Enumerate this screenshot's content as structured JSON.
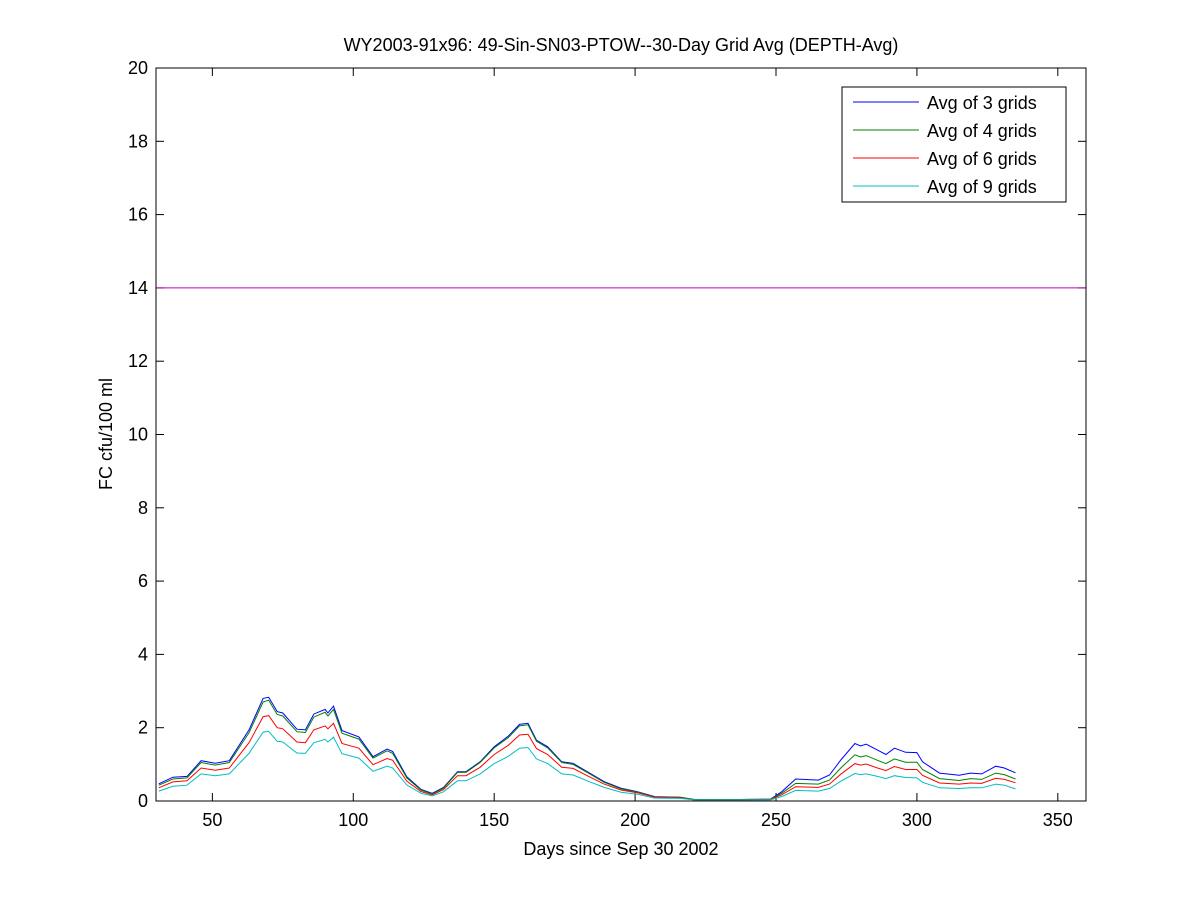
{
  "chart_data": {
    "type": "line",
    "title": "WY2003-91x96: 49-Sin-SN03-PTOW--30-Day Grid Avg (DEPTH-Avg)",
    "xlabel": "Days since Sep 30 2002",
    "ylabel": "FC cfu/100 ml",
    "xlim": [
      30,
      360
    ],
    "ylim": [
      0,
      20
    ],
    "xticks": [
      50,
      100,
      150,
      200,
      250,
      300,
      350
    ],
    "yticks": [
      0,
      2,
      4,
      6,
      8,
      10,
      12,
      14,
      16,
      18,
      20
    ],
    "grid": false,
    "legend_position": "top-right",
    "x": [
      31,
      36,
      41,
      46,
      51,
      56,
      63,
      68,
      70,
      73,
      75,
      80,
      83,
      86,
      90,
      91,
      93,
      96,
      102,
      107,
      112,
      114,
      119,
      124,
      128,
      132,
      137,
      140,
      145,
      150,
      155,
      159,
      162,
      165,
      169,
      174,
      178,
      183,
      189,
      195,
      201,
      207,
      216,
      221,
      230,
      237,
      248,
      252,
      257,
      265,
      269,
      273,
      278,
      280,
      282,
      286,
      289,
      292,
      296,
      300,
      302,
      308,
      315,
      319,
      323,
      328,
      331,
      335
    ],
    "series": [
      {
        "name": "Avg of 3 grids",
        "color": "#0000ff",
        "values": [
          0.47,
          0.65,
          0.67,
          1.1,
          1.03,
          1.1,
          1.94,
          2.8,
          2.83,
          2.44,
          2.4,
          1.96,
          1.94,
          2.37,
          2.5,
          2.4,
          2.59,
          1.92,
          1.75,
          1.21,
          1.42,
          1.35,
          0.66,
          0.32,
          0.21,
          0.37,
          0.8,
          0.8,
          1.07,
          1.48,
          1.77,
          2.09,
          2.12,
          1.66,
          1.48,
          1.07,
          1.03,
          0.8,
          0.53,
          0.35,
          0.25,
          0.12,
          0.1,
          0.04,
          0.04,
          0.04,
          0.05,
          0.25,
          0.6,
          0.57,
          0.71,
          1.12,
          1.57,
          1.5,
          1.55,
          1.39,
          1.27,
          1.44,
          1.33,
          1.32,
          1.07,
          0.76,
          0.7,
          0.76,
          0.74,
          0.95,
          0.9,
          0.77
        ]
      },
      {
        "name": "Avg of 4 grids",
        "color": "#008000",
        "values": [
          0.43,
          0.6,
          0.63,
          1.05,
          0.98,
          1.05,
          1.86,
          2.7,
          2.75,
          2.36,
          2.32,
          1.89,
          1.87,
          2.29,
          2.42,
          2.32,
          2.5,
          1.85,
          1.69,
          1.17,
          1.37,
          1.3,
          0.63,
          0.3,
          0.19,
          0.35,
          0.78,
          0.78,
          1.05,
          1.45,
          1.73,
          2.05,
          2.08,
          1.63,
          1.45,
          1.05,
          1.0,
          0.78,
          0.51,
          0.33,
          0.24,
          0.11,
          0.1,
          0.04,
          0.04,
          0.04,
          0.05,
          0.21,
          0.48,
          0.46,
          0.57,
          0.9,
          1.26,
          1.2,
          1.24,
          1.11,
          1.02,
          1.15,
          1.06,
          1.06,
          0.86,
          0.61,
          0.56,
          0.61,
          0.59,
          0.76,
          0.72,
          0.6
        ]
      },
      {
        "name": "Avg of 6 grids",
        "color": "#ff0000",
        "values": [
          0.36,
          0.52,
          0.55,
          0.9,
          0.84,
          0.9,
          1.59,
          2.3,
          2.33,
          2.0,
          1.97,
          1.61,
          1.59,
          1.94,
          2.05,
          1.97,
          2.12,
          1.57,
          1.44,
          0.99,
          1.16,
          1.11,
          0.54,
          0.26,
          0.17,
          0.31,
          0.69,
          0.69,
          0.92,
          1.27,
          1.52,
          1.8,
          1.82,
          1.43,
          1.27,
          0.92,
          0.89,
          0.69,
          0.46,
          0.3,
          0.22,
          0.1,
          0.09,
          0.03,
          0.03,
          0.03,
          0.04,
          0.17,
          0.39,
          0.37,
          0.46,
          0.73,
          1.02,
          0.98,
          1.01,
          0.9,
          0.83,
          0.94,
          0.86,
          0.86,
          0.7,
          0.49,
          0.46,
          0.49,
          0.48,
          0.62,
          0.59,
          0.5
        ]
      },
      {
        "name": "Avg of 9 grids",
        "color": "#00bfbf",
        "values": [
          0.27,
          0.4,
          0.43,
          0.74,
          0.69,
          0.74,
          1.3,
          1.88,
          1.9,
          1.63,
          1.61,
          1.31,
          1.3,
          1.59,
          1.68,
          1.61,
          1.74,
          1.29,
          1.17,
          0.81,
          0.95,
          0.9,
          0.44,
          0.21,
          0.14,
          0.25,
          0.55,
          0.55,
          0.74,
          1.02,
          1.22,
          1.44,
          1.46,
          1.15,
          1.02,
          0.74,
          0.71,
          0.55,
          0.37,
          0.24,
          0.18,
          0.08,
          0.07,
          0.03,
          0.03,
          0.03,
          0.03,
          0.12,
          0.29,
          0.27,
          0.34,
          0.54,
          0.75,
          0.72,
          0.74,
          0.67,
          0.61,
          0.69,
          0.64,
          0.63,
          0.51,
          0.36,
          0.34,
          0.36,
          0.36,
          0.46,
          0.43,
          0.33
        ]
      }
    ],
    "reference_line": {
      "y": 14,
      "color": "#bf00bf"
    }
  }
}
